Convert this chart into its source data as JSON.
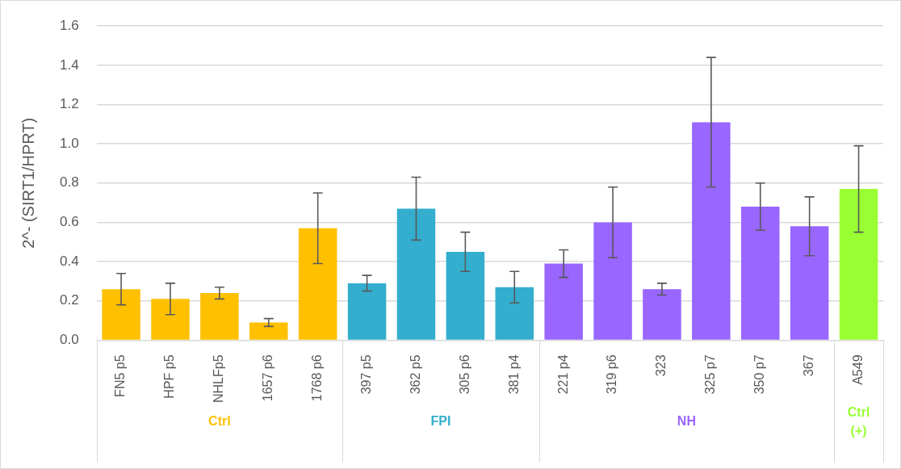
{
  "chart_data": {
    "type": "bar",
    "ylabel": "2^- (SIRT1/HPRT)",
    "categories": [
      "FN5 p5",
      "HPF p5",
      "NHLFp5",
      "1657 p6",
      "1768 p6",
      "397 p5",
      "362 p5",
      "305 p6",
      "381 p4",
      "221 p4",
      "319 p6",
      "323",
      "325 p7",
      "350 p7",
      "367",
      "A549"
    ],
    "series": [
      {
        "name": "Ctrl",
        "color": "#ffc000",
        "values": [
          0.26,
          0.21,
          0.24,
          0.09,
          0.57,
          null,
          null,
          null,
          null,
          null,
          null,
          null,
          null,
          null,
          null,
          null
        ],
        "errors": [
          0.08,
          0.08,
          0.03,
          0.02,
          0.18,
          null,
          null,
          null,
          null,
          null,
          null,
          null,
          null,
          null,
          null,
          null
        ]
      },
      {
        "name": "FPI",
        "color": "#33aece",
        "values": [
          null,
          null,
          null,
          null,
          null,
          0.29,
          0.67,
          0.45,
          0.27,
          null,
          null,
          null,
          null,
          null,
          null,
          null
        ],
        "errors": [
          null,
          null,
          null,
          null,
          null,
          0.04,
          0.16,
          0.1,
          0.08,
          null,
          null,
          null,
          null,
          null,
          null,
          null
        ]
      },
      {
        "name": "NH",
        "color": "#9966ff",
        "values": [
          null,
          null,
          null,
          null,
          null,
          null,
          null,
          null,
          null,
          0.39,
          0.6,
          0.26,
          1.11,
          0.68,
          0.58,
          null
        ],
        "errors": [
          null,
          null,
          null,
          null,
          null,
          null,
          null,
          null,
          null,
          0.07,
          0.18,
          0.03,
          0.33,
          0.12,
          0.15,
          null
        ]
      },
      {
        "name": "Ctrl (+)",
        "color": "#99ff33",
        "values": [
          null,
          null,
          null,
          null,
          null,
          null,
          null,
          null,
          null,
          null,
          null,
          null,
          null,
          null,
          null,
          0.77
        ],
        "errors": [
          null,
          null,
          null,
          null,
          null,
          null,
          null,
          null,
          null,
          null,
          null,
          null,
          null,
          null,
          null,
          0.22
        ]
      }
    ],
    "ylim": [
      0,
      1.6
    ],
    "yticks": [
      {
        "value": 0,
        "label": "0.0"
      },
      0.2,
      0.4,
      0.6,
      0.8,
      {
        "value": 1,
        "label": "1.0"
      },
      1.2,
      1.4,
      1.6
    ],
    "grid": "y",
    "legend": false
  }
}
